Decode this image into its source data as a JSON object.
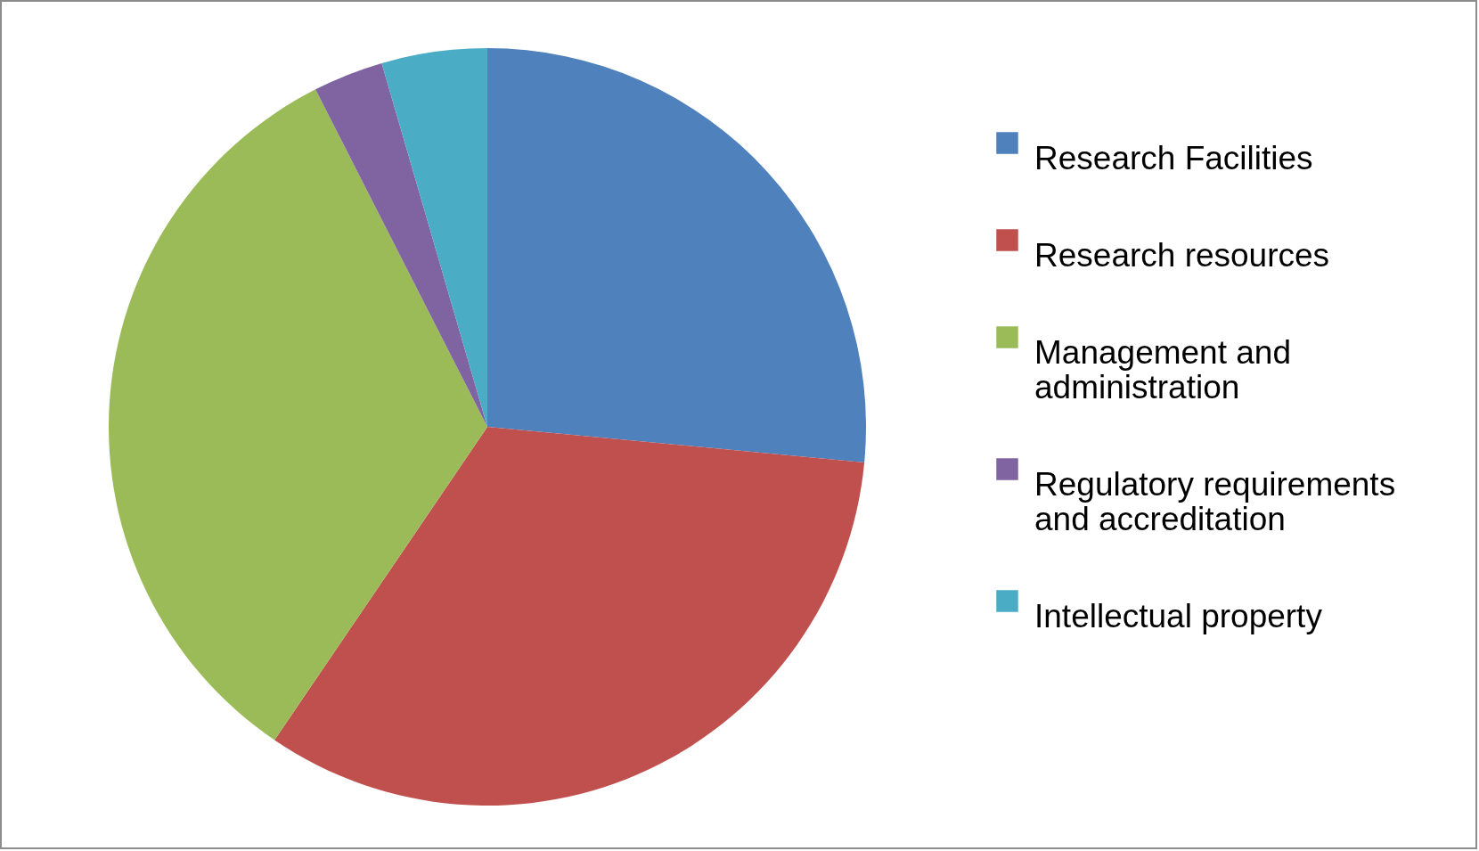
{
  "chart_data": {
    "type": "pie",
    "categories": [
      "Research Facilities",
      "Research resources",
      "Management and administration",
      "Regulatory requirements and accreditation",
      "Intellectual property"
    ],
    "values": [
      26.5,
      33,
      33,
      3,
      4.5
    ],
    "colors": [
      "#4f81bd",
      "#c0504d",
      "#9bbb59",
      "#8064a2",
      "#4bacc6"
    ],
    "legend": "right"
  }
}
